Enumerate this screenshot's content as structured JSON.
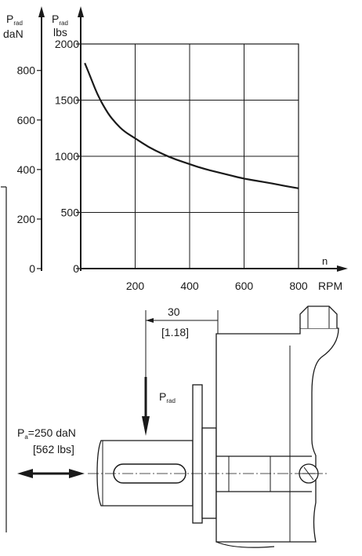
{
  "chart_data": {
    "type": "line",
    "x_unit": "n",
    "x_unit_rpm": "RPM",
    "x_ticks": [
      200,
      400,
      600,
      800
    ],
    "xlim": [
      0,
      800
    ],
    "y_left": {
      "label_main": "P",
      "label_sub": "rad",
      "unit": "daN",
      "ticks": [
        0,
        200,
        400,
        600,
        800
      ],
      "ylim": [
        0,
        907
      ]
    },
    "y_right": {
      "label_main": "P",
      "label_sub": "rad",
      "unit": "lbs",
      "ticks": [
        0,
        500,
        1000,
        1500,
        2000
      ],
      "ylim": [
        0,
        2000
      ]
    },
    "grid": true,
    "series": [
      {
        "x": [
          15,
          40,
          65,
          100,
          130,
          160,
          200,
          250,
          300,
          350,
          400,
          450,
          500,
          550,
          600,
          650,
          700,
          750,
          800
        ],
        "y": [
          1830,
          1680,
          1530,
          1380,
          1290,
          1220,
          1160,
          1080,
          1020,
          970,
          930,
          890,
          860,
          830,
          800,
          780,
          760,
          735,
          715
        ]
      }
    ]
  },
  "drawing": {
    "dim_value": "30",
    "dim_value_inch": "[1.18]",
    "radial_load_main": "P",
    "radial_load_sub": "rad",
    "axial_load_main": "P",
    "axial_load_sub": "a",
    "axial_load_value": "=250 daN",
    "axial_load_value_lbs": "[562 lbs]"
  }
}
